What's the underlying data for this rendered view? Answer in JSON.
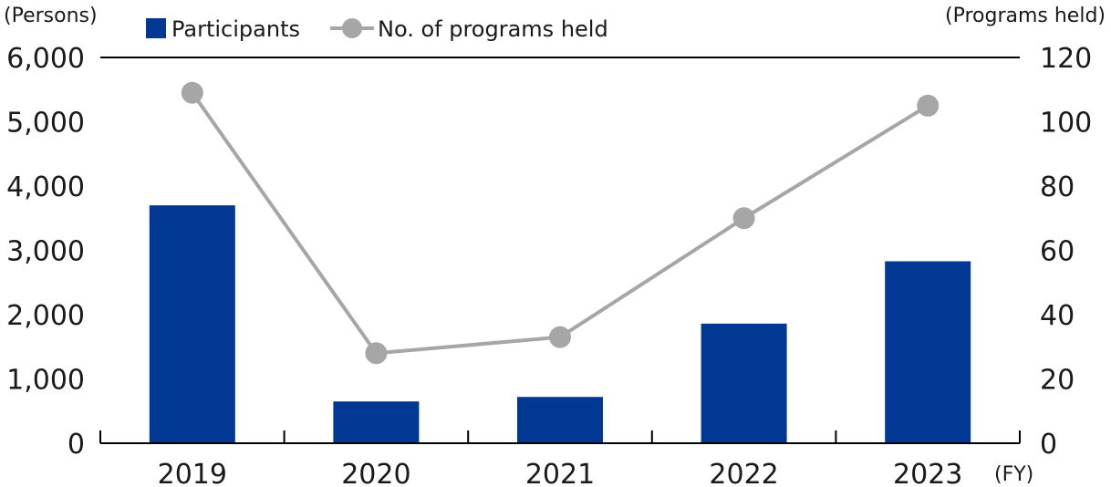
{
  "chart_data": {
    "type": "bar",
    "categories": [
      "2019",
      "2020",
      "2021",
      "2022",
      "2023"
    ],
    "x_unit": "(FY)",
    "series": [
      {
        "name": "Participants",
        "type": "bar",
        "axis": "left",
        "color": "#003893",
        "values": [
          3700,
          650,
          720,
          1860,
          2830
        ]
      },
      {
        "name": "No. of programs held",
        "type": "line",
        "axis": "right",
        "color": "#a6a6a6",
        "values": [
          109,
          28,
          33,
          70,
          105
        ]
      }
    ],
    "y_left": {
      "unit": "(Persons)",
      "ylim": [
        0,
        6000
      ],
      "ticks": [
        "0",
        "1,000",
        "2,000",
        "3,000",
        "4,000",
        "5,000",
        "6,000"
      ]
    },
    "y_right": {
      "unit": "(Programs held)",
      "ylim": [
        0,
        120
      ],
      "ticks": [
        "0",
        "20",
        "40",
        "60",
        "80",
        "100",
        "120"
      ]
    },
    "legend": {
      "placement": "top-left",
      "items": [
        "Participants",
        "No. of programs held"
      ]
    },
    "grid": false
  }
}
